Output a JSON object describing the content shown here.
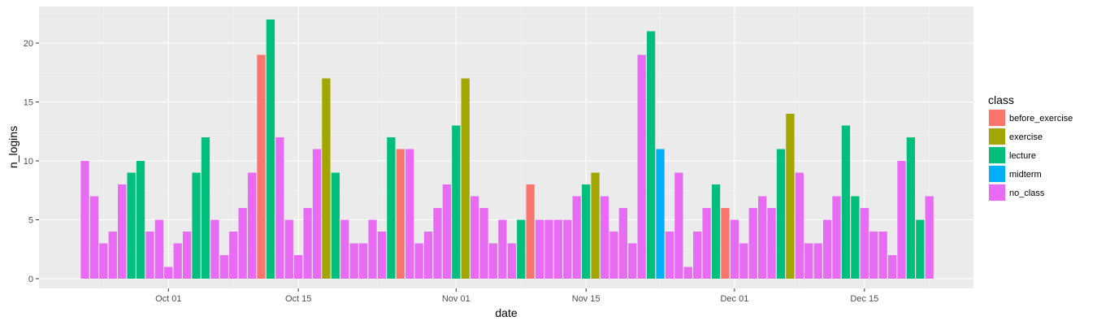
{
  "chart_data": {
    "type": "bar",
    "xlabel": "date",
    "ylabel": "n_logins",
    "ylim": [
      0,
      22
    ],
    "yticks": [
      0,
      5,
      10,
      15,
      20
    ],
    "xticks": [
      {
        "date": "2017-10-01",
        "label": "Oct 01"
      },
      {
        "date": "2017-10-15",
        "label": "Oct 15"
      },
      {
        "date": "2017-11-01",
        "label": "Nov 01"
      },
      {
        "date": "2017-11-15",
        "label": "Nov 15"
      },
      {
        "date": "2017-12-01",
        "label": "Dec 01"
      },
      {
        "date": "2017-12-15",
        "label": "Dec 15"
      }
    ],
    "grid": true,
    "legend": {
      "title": "class",
      "position": "right",
      "entries": [
        {
          "name": "before_exercise",
          "color": "#F8766D"
        },
        {
          "name": "exercise",
          "color": "#A3A500"
        },
        {
          "name": "lecture",
          "color": "#00BF7D"
        },
        {
          "name": "midterm",
          "color": "#00B0F6"
        },
        {
          "name": "no_class",
          "color": "#E76BF3"
        }
      ]
    },
    "bars": [
      {
        "date": "2017-09-22",
        "value": 10,
        "class": "no_class"
      },
      {
        "date": "2017-09-23",
        "value": 7,
        "class": "no_class"
      },
      {
        "date": "2017-09-24",
        "value": 3,
        "class": "no_class"
      },
      {
        "date": "2017-09-25",
        "value": 4,
        "class": "no_class"
      },
      {
        "date": "2017-09-26",
        "value": 8,
        "class": "no_class"
      },
      {
        "date": "2017-09-27",
        "value": 9,
        "class": "lecture"
      },
      {
        "date": "2017-09-28",
        "value": 10,
        "class": "lecture"
      },
      {
        "date": "2017-09-29",
        "value": 4,
        "class": "no_class"
      },
      {
        "date": "2017-09-30",
        "value": 5,
        "class": "no_class"
      },
      {
        "date": "2017-10-01",
        "value": 1,
        "class": "no_class"
      },
      {
        "date": "2017-10-02",
        "value": 3,
        "class": "no_class"
      },
      {
        "date": "2017-10-03",
        "value": 4,
        "class": "no_class"
      },
      {
        "date": "2017-10-04",
        "value": 9,
        "class": "lecture"
      },
      {
        "date": "2017-10-05",
        "value": 12,
        "class": "lecture"
      },
      {
        "date": "2017-10-06",
        "value": 5,
        "class": "no_class"
      },
      {
        "date": "2017-10-07",
        "value": 2,
        "class": "no_class"
      },
      {
        "date": "2017-10-08",
        "value": 4,
        "class": "no_class"
      },
      {
        "date": "2017-10-09",
        "value": 6,
        "class": "no_class"
      },
      {
        "date": "2017-10-10",
        "value": 9,
        "class": "no_class"
      },
      {
        "date": "2017-10-11",
        "value": 19,
        "class": "before_exercise"
      },
      {
        "date": "2017-10-12",
        "value": 22,
        "class": "lecture"
      },
      {
        "date": "2017-10-13",
        "value": 12,
        "class": "no_class"
      },
      {
        "date": "2017-10-14",
        "value": 5,
        "class": "no_class"
      },
      {
        "date": "2017-10-15",
        "value": 2,
        "class": "no_class"
      },
      {
        "date": "2017-10-16",
        "value": 6,
        "class": "no_class"
      },
      {
        "date": "2017-10-17",
        "value": 11,
        "class": "no_class"
      },
      {
        "date": "2017-10-18",
        "value": 17,
        "class": "exercise"
      },
      {
        "date": "2017-10-19",
        "value": 9,
        "class": "lecture"
      },
      {
        "date": "2017-10-20",
        "value": 5,
        "class": "no_class"
      },
      {
        "date": "2017-10-21",
        "value": 3,
        "class": "no_class"
      },
      {
        "date": "2017-10-22",
        "value": 3,
        "class": "no_class"
      },
      {
        "date": "2017-10-23",
        "value": 5,
        "class": "no_class"
      },
      {
        "date": "2017-10-24",
        "value": 4,
        "class": "no_class"
      },
      {
        "date": "2017-10-25",
        "value": 12,
        "class": "lecture"
      },
      {
        "date": "2017-10-26",
        "value": 11,
        "class": "before_exercise"
      },
      {
        "date": "2017-10-27",
        "value": 11,
        "class": "no_class"
      },
      {
        "date": "2017-10-28",
        "value": 3,
        "class": "no_class"
      },
      {
        "date": "2017-10-29",
        "value": 4,
        "class": "no_class"
      },
      {
        "date": "2017-10-30",
        "value": 6,
        "class": "no_class"
      },
      {
        "date": "2017-10-31",
        "value": 8,
        "class": "no_class"
      },
      {
        "date": "2017-11-01",
        "value": 13,
        "class": "lecture"
      },
      {
        "date": "2017-11-02",
        "value": 17,
        "class": "exercise"
      },
      {
        "date": "2017-11-03",
        "value": 7,
        "class": "no_class"
      },
      {
        "date": "2017-11-04",
        "value": 6,
        "class": "no_class"
      },
      {
        "date": "2017-11-05",
        "value": 3,
        "class": "no_class"
      },
      {
        "date": "2017-11-06",
        "value": 5,
        "class": "no_class"
      },
      {
        "date": "2017-11-07",
        "value": 3,
        "class": "no_class"
      },
      {
        "date": "2017-11-08",
        "value": 5,
        "class": "lecture"
      },
      {
        "date": "2017-11-09",
        "value": 8,
        "class": "before_exercise"
      },
      {
        "date": "2017-11-10",
        "value": 5,
        "class": "no_class"
      },
      {
        "date": "2017-11-11",
        "value": 5,
        "class": "no_class"
      },
      {
        "date": "2017-11-12",
        "value": 5,
        "class": "no_class"
      },
      {
        "date": "2017-11-13",
        "value": 5,
        "class": "no_class"
      },
      {
        "date": "2017-11-14",
        "value": 7,
        "class": "no_class"
      },
      {
        "date": "2017-11-15",
        "value": 8,
        "class": "lecture"
      },
      {
        "date": "2017-11-16",
        "value": 9,
        "class": "exercise"
      },
      {
        "date": "2017-11-17",
        "value": 7,
        "class": "no_class"
      },
      {
        "date": "2017-11-18",
        "value": 4,
        "class": "no_class"
      },
      {
        "date": "2017-11-19",
        "value": 6,
        "class": "no_class"
      },
      {
        "date": "2017-11-20",
        "value": 3,
        "class": "no_class"
      },
      {
        "date": "2017-11-21",
        "value": 19,
        "class": "no_class"
      },
      {
        "date": "2017-11-22",
        "value": 21,
        "class": "lecture"
      },
      {
        "date": "2017-11-23",
        "value": 11,
        "class": "midterm"
      },
      {
        "date": "2017-11-24",
        "value": 4,
        "class": "no_class"
      },
      {
        "date": "2017-11-25",
        "value": 9,
        "class": "no_class"
      },
      {
        "date": "2017-11-26",
        "value": 1,
        "class": "no_class"
      },
      {
        "date": "2017-11-27",
        "value": 4,
        "class": "no_class"
      },
      {
        "date": "2017-11-28",
        "value": 6,
        "class": "no_class"
      },
      {
        "date": "2017-11-29",
        "value": 8,
        "class": "lecture"
      },
      {
        "date": "2017-11-30",
        "value": 6,
        "class": "before_exercise"
      },
      {
        "date": "2017-12-01",
        "value": 5,
        "class": "no_class"
      },
      {
        "date": "2017-12-02",
        "value": 3,
        "class": "no_class"
      },
      {
        "date": "2017-12-03",
        "value": 6,
        "class": "no_class"
      },
      {
        "date": "2017-12-04",
        "value": 7,
        "class": "no_class"
      },
      {
        "date": "2017-12-05",
        "value": 6,
        "class": "no_class"
      },
      {
        "date": "2017-12-06",
        "value": 11,
        "class": "lecture"
      },
      {
        "date": "2017-12-07",
        "value": 14,
        "class": "exercise"
      },
      {
        "date": "2017-12-08",
        "value": 9,
        "class": "no_class"
      },
      {
        "date": "2017-12-09",
        "value": 3,
        "class": "no_class"
      },
      {
        "date": "2017-12-10",
        "value": 3,
        "class": "no_class"
      },
      {
        "date": "2017-12-11",
        "value": 5,
        "class": "no_class"
      },
      {
        "date": "2017-12-12",
        "value": 7,
        "class": "no_class"
      },
      {
        "date": "2017-12-13",
        "value": 13,
        "class": "lecture"
      },
      {
        "date": "2017-12-14",
        "value": 7,
        "class": "lecture"
      },
      {
        "date": "2017-12-15",
        "value": 6,
        "class": "no_class"
      },
      {
        "date": "2017-12-16",
        "value": 4,
        "class": "no_class"
      },
      {
        "date": "2017-12-17",
        "value": 4,
        "class": "no_class"
      },
      {
        "date": "2017-12-18",
        "value": 2,
        "class": "no_class"
      },
      {
        "date": "2017-12-19",
        "value": 10,
        "class": "no_class"
      },
      {
        "date": "2017-12-20",
        "value": 12,
        "class": "lecture"
      },
      {
        "date": "2017-12-21",
        "value": 5,
        "class": "lecture"
      },
      {
        "date": "2017-12-22",
        "value": 7,
        "class": "no_class"
      }
    ]
  }
}
